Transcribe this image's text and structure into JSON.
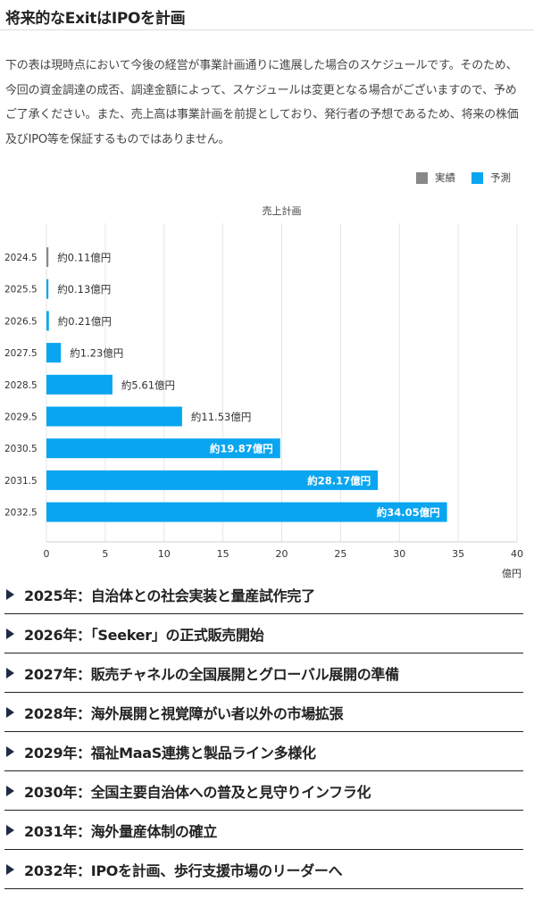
{
  "heading": "将来的なExitはIPOを計画",
  "description": "下の表は現時点において今後の経営が事業計画通りに進展した場合のスケジュールです。そのため、今回の資金調達の成否、調達金額によって、スケジュールは変更となる場合がございますので、予めご了承ください。また、売上高は事業計画を前提としており、発行者の予想であるため、将来の株価及びIPO等を保証するものではありません。",
  "chart_data": {
    "type": "bar",
    "orientation": "horizontal",
    "title": "売上計画",
    "unit_label": "億円",
    "xlim": [
      0,
      40
    ],
    "xticks": [
      0,
      5,
      10,
      15,
      20,
      25,
      30,
      35,
      40
    ],
    "grid": true,
    "legend_position": "top-right",
    "legend": [
      {
        "name": "実績",
        "color": "#888888"
      },
      {
        "name": "予測",
        "color": "#0aa5f0"
      }
    ],
    "categories": [
      "2024.5",
      "2025.5",
      "2026.5",
      "2027.5",
      "2028.5",
      "2029.5",
      "2030.5",
      "2031.5",
      "2032.5"
    ],
    "values": [
      0.11,
      0.13,
      0.21,
      1.23,
      5.61,
      11.53,
      19.87,
      28.17,
      34.05
    ],
    "series_index": [
      0,
      1,
      1,
      1,
      1,
      1,
      1,
      1,
      1
    ],
    "data_labels": [
      "約0.11億円",
      "約0.13億円",
      "約0.21億円",
      "約1.23億円",
      "約5.61億円",
      "約11.53億円",
      "約19.87億円",
      "約28.17億円",
      "約34.05億円"
    ]
  },
  "milestones": [
    "2025年：自治体との社会実装と量産試作完了",
    "2026年：「Seeker」の正式販売開始",
    "2027年：販売チャネルの全国展開とグローバル展開の準備",
    "2028年：海外展開と視覚障がい者以外の市場拡張",
    "2029年：福祉MaaS連携と製品ライン多様化",
    "2030年：全国主要自治体への普及と見守りインフラ化",
    "2031年：海外量産体制の確立",
    "2032年：IPOを計画、歩行支援市場のリーダーへ"
  ]
}
